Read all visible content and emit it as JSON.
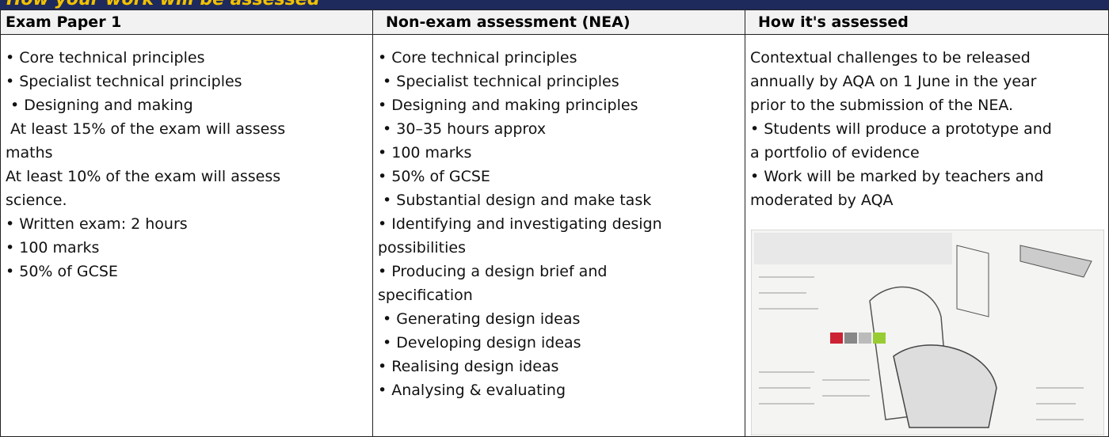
{
  "header": {
    "title": "How your work will be assessed"
  },
  "table": {
    "columns": [
      "Exam Paper 1",
      "Non-exam assessment (NEA)",
      "How it's assessed"
    ],
    "cells": [
      [
        "• Core technical principles",
        "• Specialist technical principles",
        " • Designing and making",
        " At least 15% of the exam will assess",
        "maths",
        "At least 10% of the exam will assess",
        "science.",
        "• Written exam: 2 hours",
        "• 100 marks",
        "• 50% of GCSE"
      ],
      [
        "• Core technical principles",
        " • Specialist technical principles",
        "• Designing and making principles",
        " • 30–35 hours approx",
        "• 100 marks",
        "• 50% of GCSE",
        " • Substantial design and make task",
        "• Identifying and investigating design",
        "possibilities",
        "• Producing a design brief and",
        "specification",
        " • Generating design ideas",
        " • Developing design ideas",
        "• Realising design ideas",
        "• Analysing & evaluating"
      ],
      [
        "Contextual challenges to be released",
        "annually by AQA on 1 June in the year",
        "prior to the submission of the NEA.",
        "• Students will produce a prototype and",
        "a portfolio of evidence",
        "• Work will be marked by teachers and",
        "moderated by AQA"
      ]
    ]
  }
}
